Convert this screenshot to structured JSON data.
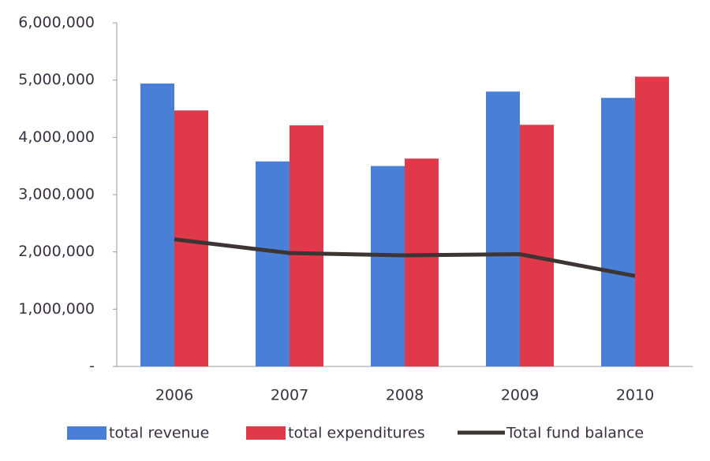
{
  "chart_data": {
    "type": "bar_line",
    "categories": [
      "2006",
      "2007",
      "2008",
      "2009",
      "2010"
    ],
    "series": [
      {
        "name": "total revenue",
        "type": "bar",
        "color": "#4a7fd8",
        "values": [
          4940000,
          3580000,
          3500000,
          4800000,
          4690000
        ]
      },
      {
        "name": "total expenditures",
        "type": "bar",
        "color": "#e0394a",
        "values": [
          4470000,
          4210000,
          3630000,
          4220000,
          5060000
        ]
      },
      {
        "name": "Total fund balance",
        "type": "line",
        "color": "#3d3434",
        "values": [
          2220000,
          1980000,
          1940000,
          1960000,
          1580000
        ]
      }
    ],
    "ylim": [
      0,
      6000000
    ],
    "yticks": [
      {
        "value": 0,
        "label": "-"
      },
      {
        "value": 1000000,
        "label": "1,000,000"
      },
      {
        "value": 2000000,
        "label": "2,000,000"
      },
      {
        "value": 3000000,
        "label": "3,000,000"
      },
      {
        "value": 4000000,
        "label": "4,000,000"
      },
      {
        "value": 5000000,
        "label": "5,000,000"
      },
      {
        "value": 6000000,
        "label": "6,000,000"
      }
    ],
    "grid": false,
    "legend": "bottom"
  }
}
